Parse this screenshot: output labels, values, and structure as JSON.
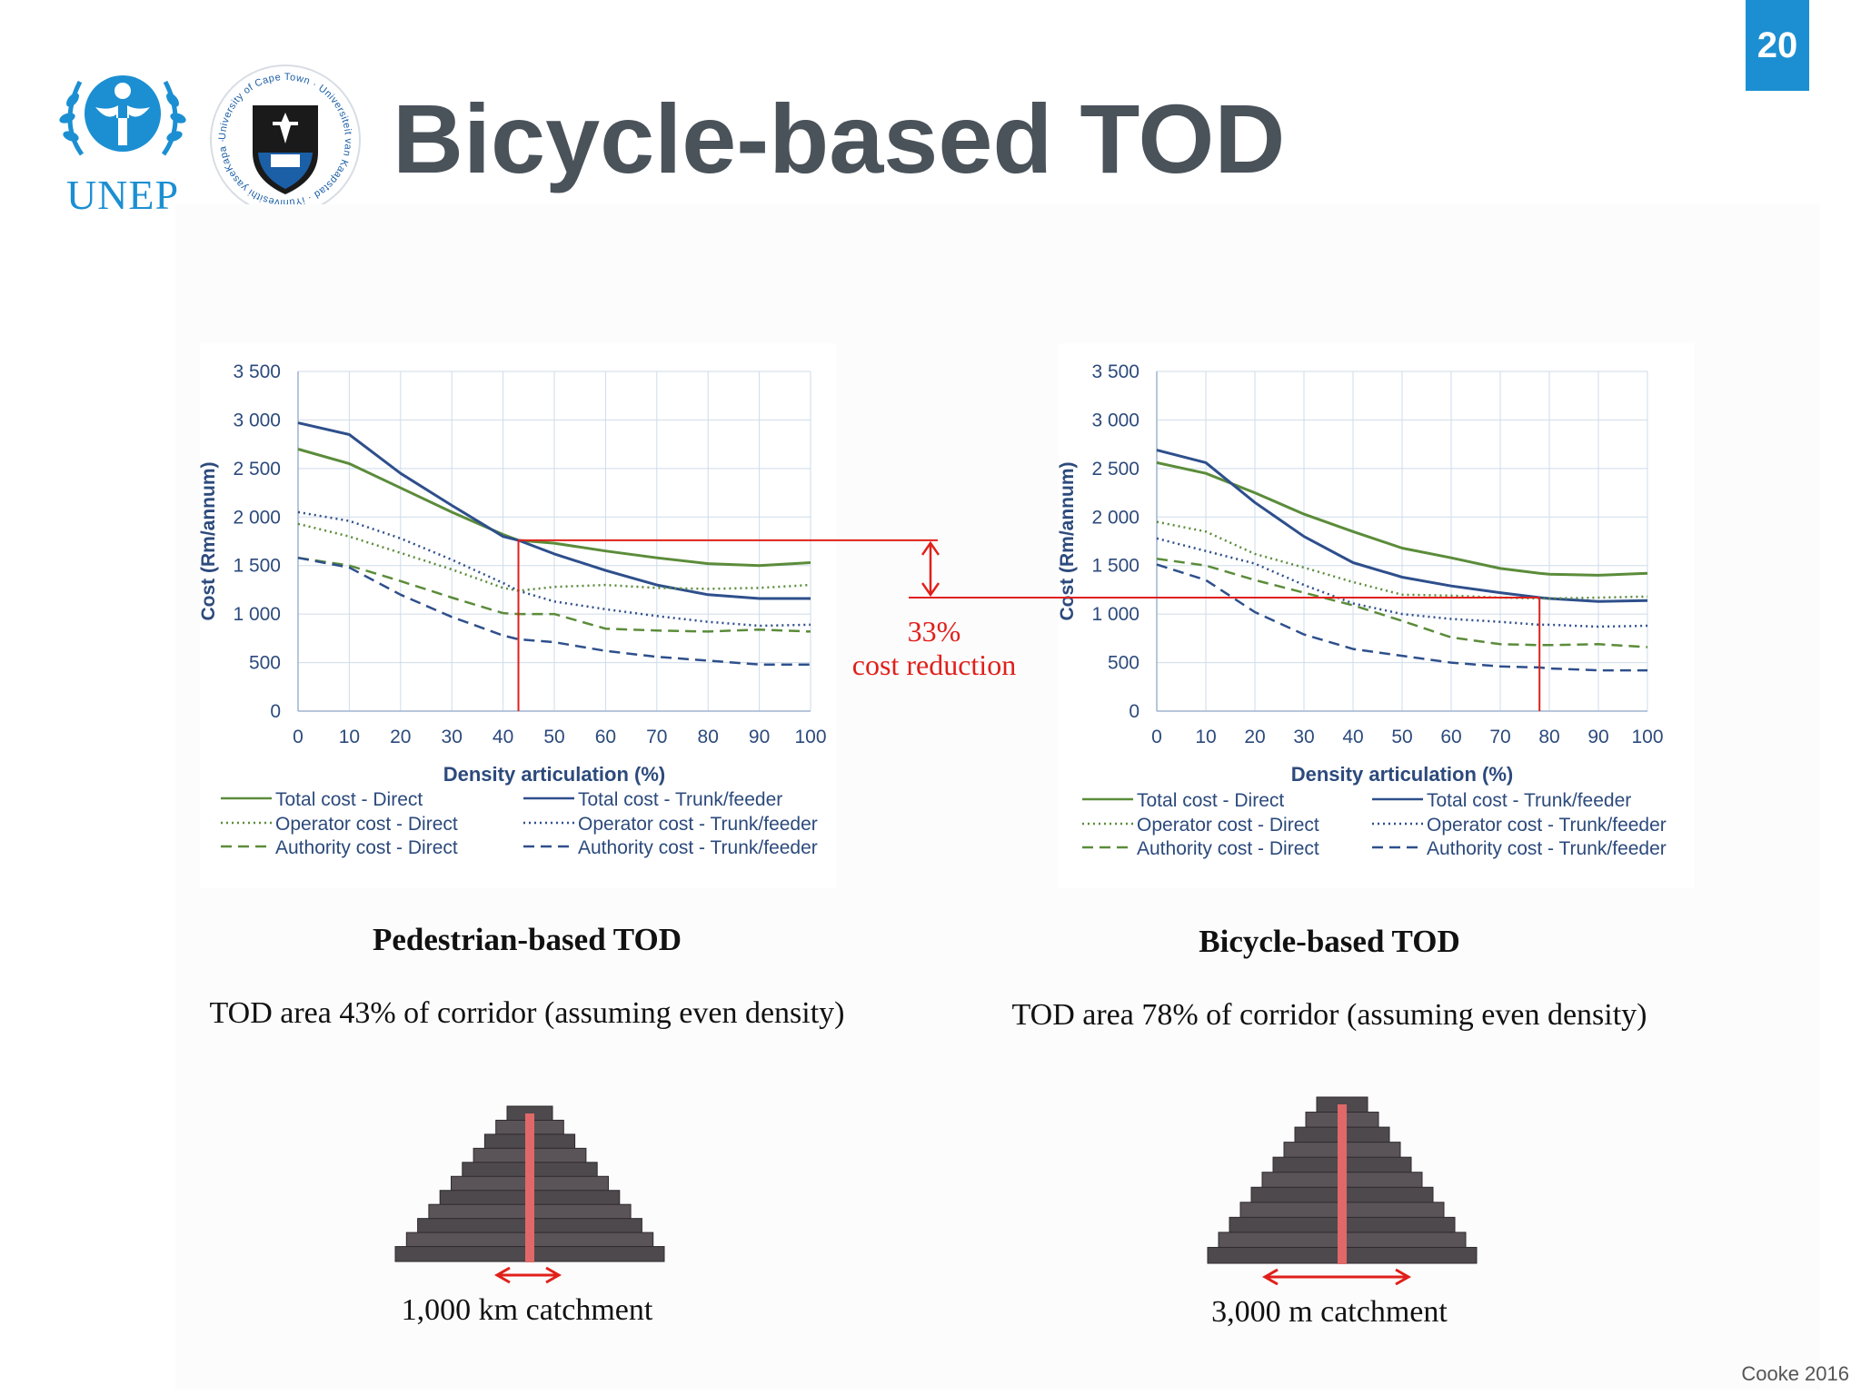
{
  "slide": {
    "page_number": "20",
    "title": "Bicycle-based TOD",
    "footer_credit": "Cooke 2016"
  },
  "logos": {
    "unep_text": "UNEP",
    "uct_ring_text": "University of Cape Town · Universiteit van Kaapstad · iYunivesithi yaseKapa ·"
  },
  "legend": [
    {
      "label": "Total cost - Direct",
      "color": "#5b8c3a",
      "style": "solid"
    },
    {
      "label": "Total cost - Trunk/feeder",
      "color": "#2e4f8c",
      "style": "solid"
    },
    {
      "label": "Operator cost - Direct",
      "color": "#5b8c3a",
      "style": "dotted"
    },
    {
      "label": "Operator cost - Trunk/feeder",
      "color": "#2e4f8c",
      "style": "dotted"
    },
    {
      "label": "Authority cost - Direct",
      "color": "#5b8c3a",
      "style": "dashed"
    },
    {
      "label": "Authority cost - Trunk/feeder",
      "color": "#2e4f8c",
      "style": "dashed"
    }
  ],
  "chart_data": [
    {
      "type": "line",
      "ylabel": "Cost (Rm/annum)",
      "xlabel": "Density articulation (%)",
      "ylim": [
        0,
        3500
      ],
      "xlim": [
        0,
        100
      ],
      "y_ticks": [
        "0",
        "500",
        "1 000",
        "1 500",
        "2 000",
        "2 500",
        "3 000",
        "3 500"
      ],
      "x_ticks": [
        "0",
        "10",
        "20",
        "30",
        "40",
        "50",
        "60",
        "70",
        "80",
        "90",
        "100"
      ],
      "x": [
        0,
        10,
        20,
        30,
        40,
        43,
        50,
        60,
        70,
        80,
        90,
        100
      ],
      "series": [
        {
          "name": "Total cost - Direct",
          "values": [
            2700,
            2550,
            2300,
            2050,
            1820,
            1760,
            1730,
            1650,
            1580,
            1520,
            1500,
            1530
          ]
        },
        {
          "name": "Total cost - Trunk/feeder",
          "values": [
            2970,
            2850,
            2450,
            2120,
            1800,
            1760,
            1620,
            1450,
            1300,
            1200,
            1160,
            1160
          ]
        },
        {
          "name": "Operator cost - Direct",
          "values": [
            1930,
            1800,
            1630,
            1460,
            1270,
            1240,
            1280,
            1300,
            1270,
            1260,
            1270,
            1300
          ]
        },
        {
          "name": "Operator cost - Trunk/feeder",
          "values": [
            2050,
            1960,
            1780,
            1560,
            1320,
            1240,
            1130,
            1050,
            980,
            920,
            880,
            890
          ]
        },
        {
          "name": "Authority cost - Direct",
          "values": [
            1580,
            1500,
            1340,
            1170,
            1010,
            1000,
            1000,
            850,
            830,
            820,
            840,
            820
          ]
        },
        {
          "name": "Authority cost - Trunk/feeder",
          "values": [
            1580,
            1480,
            1200,
            970,
            780,
            740,
            710,
            620,
            560,
            520,
            480,
            480
          ]
        }
      ]
    },
    {
      "type": "line",
      "ylabel": "Cost (Rm/annum)",
      "xlabel": "Density articulation (%)",
      "ylim": [
        0,
        3500
      ],
      "xlim": [
        0,
        100
      ],
      "y_ticks": [
        "0",
        "500",
        "1 000",
        "1 500",
        "2 000",
        "2 500",
        "3 000",
        "3 500"
      ],
      "x_ticks": [
        "0",
        "10",
        "20",
        "30",
        "40",
        "50",
        "60",
        "70",
        "80",
        "90",
        "100"
      ],
      "x": [
        0,
        10,
        20,
        30,
        40,
        50,
        60,
        70,
        78,
        80,
        90,
        100
      ],
      "series": [
        {
          "name": "Total cost - Direct",
          "values": [
            2560,
            2450,
            2250,
            2030,
            1850,
            1680,
            1580,
            1470,
            1420,
            1410,
            1400,
            1420
          ]
        },
        {
          "name": "Total cost - Trunk/feeder",
          "values": [
            2690,
            2560,
            2150,
            1800,
            1530,
            1380,
            1290,
            1220,
            1170,
            1160,
            1130,
            1140
          ]
        },
        {
          "name": "Operator cost - Direct",
          "values": [
            1950,
            1850,
            1620,
            1480,
            1330,
            1200,
            1190,
            1170,
            1160,
            1160,
            1170,
            1180
          ]
        },
        {
          "name": "Operator cost - Trunk/feeder",
          "values": [
            1780,
            1650,
            1520,
            1300,
            1110,
            1000,
            950,
            920,
            890,
            890,
            870,
            880
          ]
        },
        {
          "name": "Authority cost - Direct",
          "values": [
            1570,
            1500,
            1350,
            1220,
            1090,
            930,
            760,
            690,
            680,
            680,
            690,
            660
          ]
        },
        {
          "name": "Authority cost - Trunk/feeder",
          "values": [
            1510,
            1350,
            1020,
            790,
            640,
            570,
            500,
            460,
            450,
            440,
            420,
            420
          ]
        }
      ]
    }
  ],
  "annotation": {
    "percent": "33%",
    "text": "cost reduction",
    "from_value": 1760,
    "to_value": 1170,
    "left_marker_x": 43,
    "right_marker_x": 78,
    "color": "#e0201a"
  },
  "captions": {
    "left_title": "Pedestrian-based TOD",
    "right_title": "Bicycle-based TOD",
    "left_area": "TOD area 43% of corridor (assuming even density)",
    "right_area": "TOD area 78% of corridor (assuming even density)",
    "left_catchment": "1,000 km catchment",
    "right_catchment": "3,000 m catchment"
  }
}
